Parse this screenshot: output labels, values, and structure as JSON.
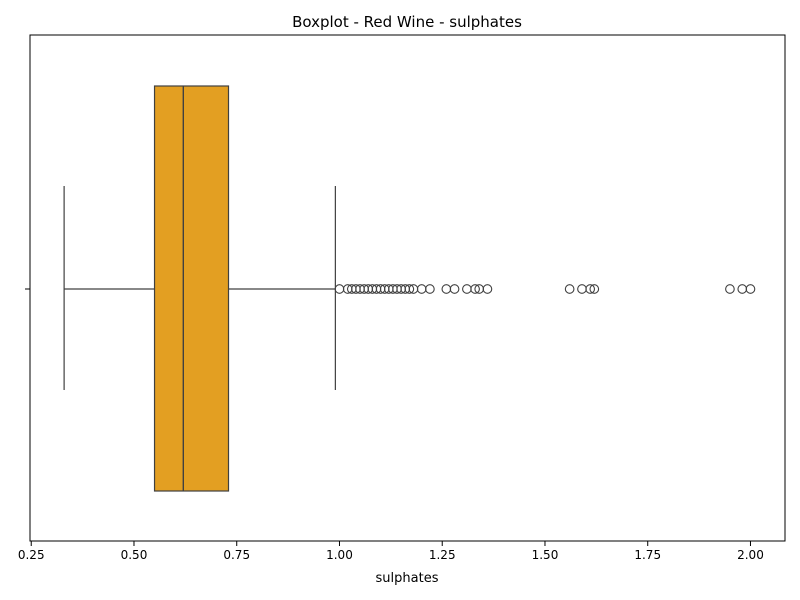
{
  "chart_data": {
    "type": "boxplot",
    "orientation": "horizontal",
    "title": "Boxplot - Red Wine - sulphates",
    "xlabel": "sulphates",
    "ylabel": "",
    "xlim": [
      0.247,
      2.084
    ],
    "xticks": [
      0.25,
      0.5,
      0.75,
      1.0,
      1.25,
      1.5,
      1.75,
      2.0
    ],
    "xtick_labels": [
      "0.25",
      "0.50",
      "0.75",
      "1.00",
      "1.25",
      "1.50",
      "1.75",
      "2.00"
    ],
    "grid": false,
    "legend": "none",
    "box": {
      "whisker_low": 0.33,
      "q1": 0.55,
      "median": 0.62,
      "q3": 0.73,
      "whisker_high": 0.99
    },
    "outliers": [
      1.0,
      1.02,
      1.03,
      1.04,
      1.05,
      1.06,
      1.07,
      1.08,
      1.09,
      1.1,
      1.11,
      1.12,
      1.13,
      1.14,
      1.15,
      1.16,
      1.17,
      1.18,
      1.2,
      1.22,
      1.26,
      1.28,
      1.31,
      1.33,
      1.34,
      1.36,
      1.56,
      1.59,
      1.61,
      1.62,
      1.95,
      1.98,
      2.0
    ],
    "box_color": "#e39f22",
    "line_color": "#404040"
  }
}
